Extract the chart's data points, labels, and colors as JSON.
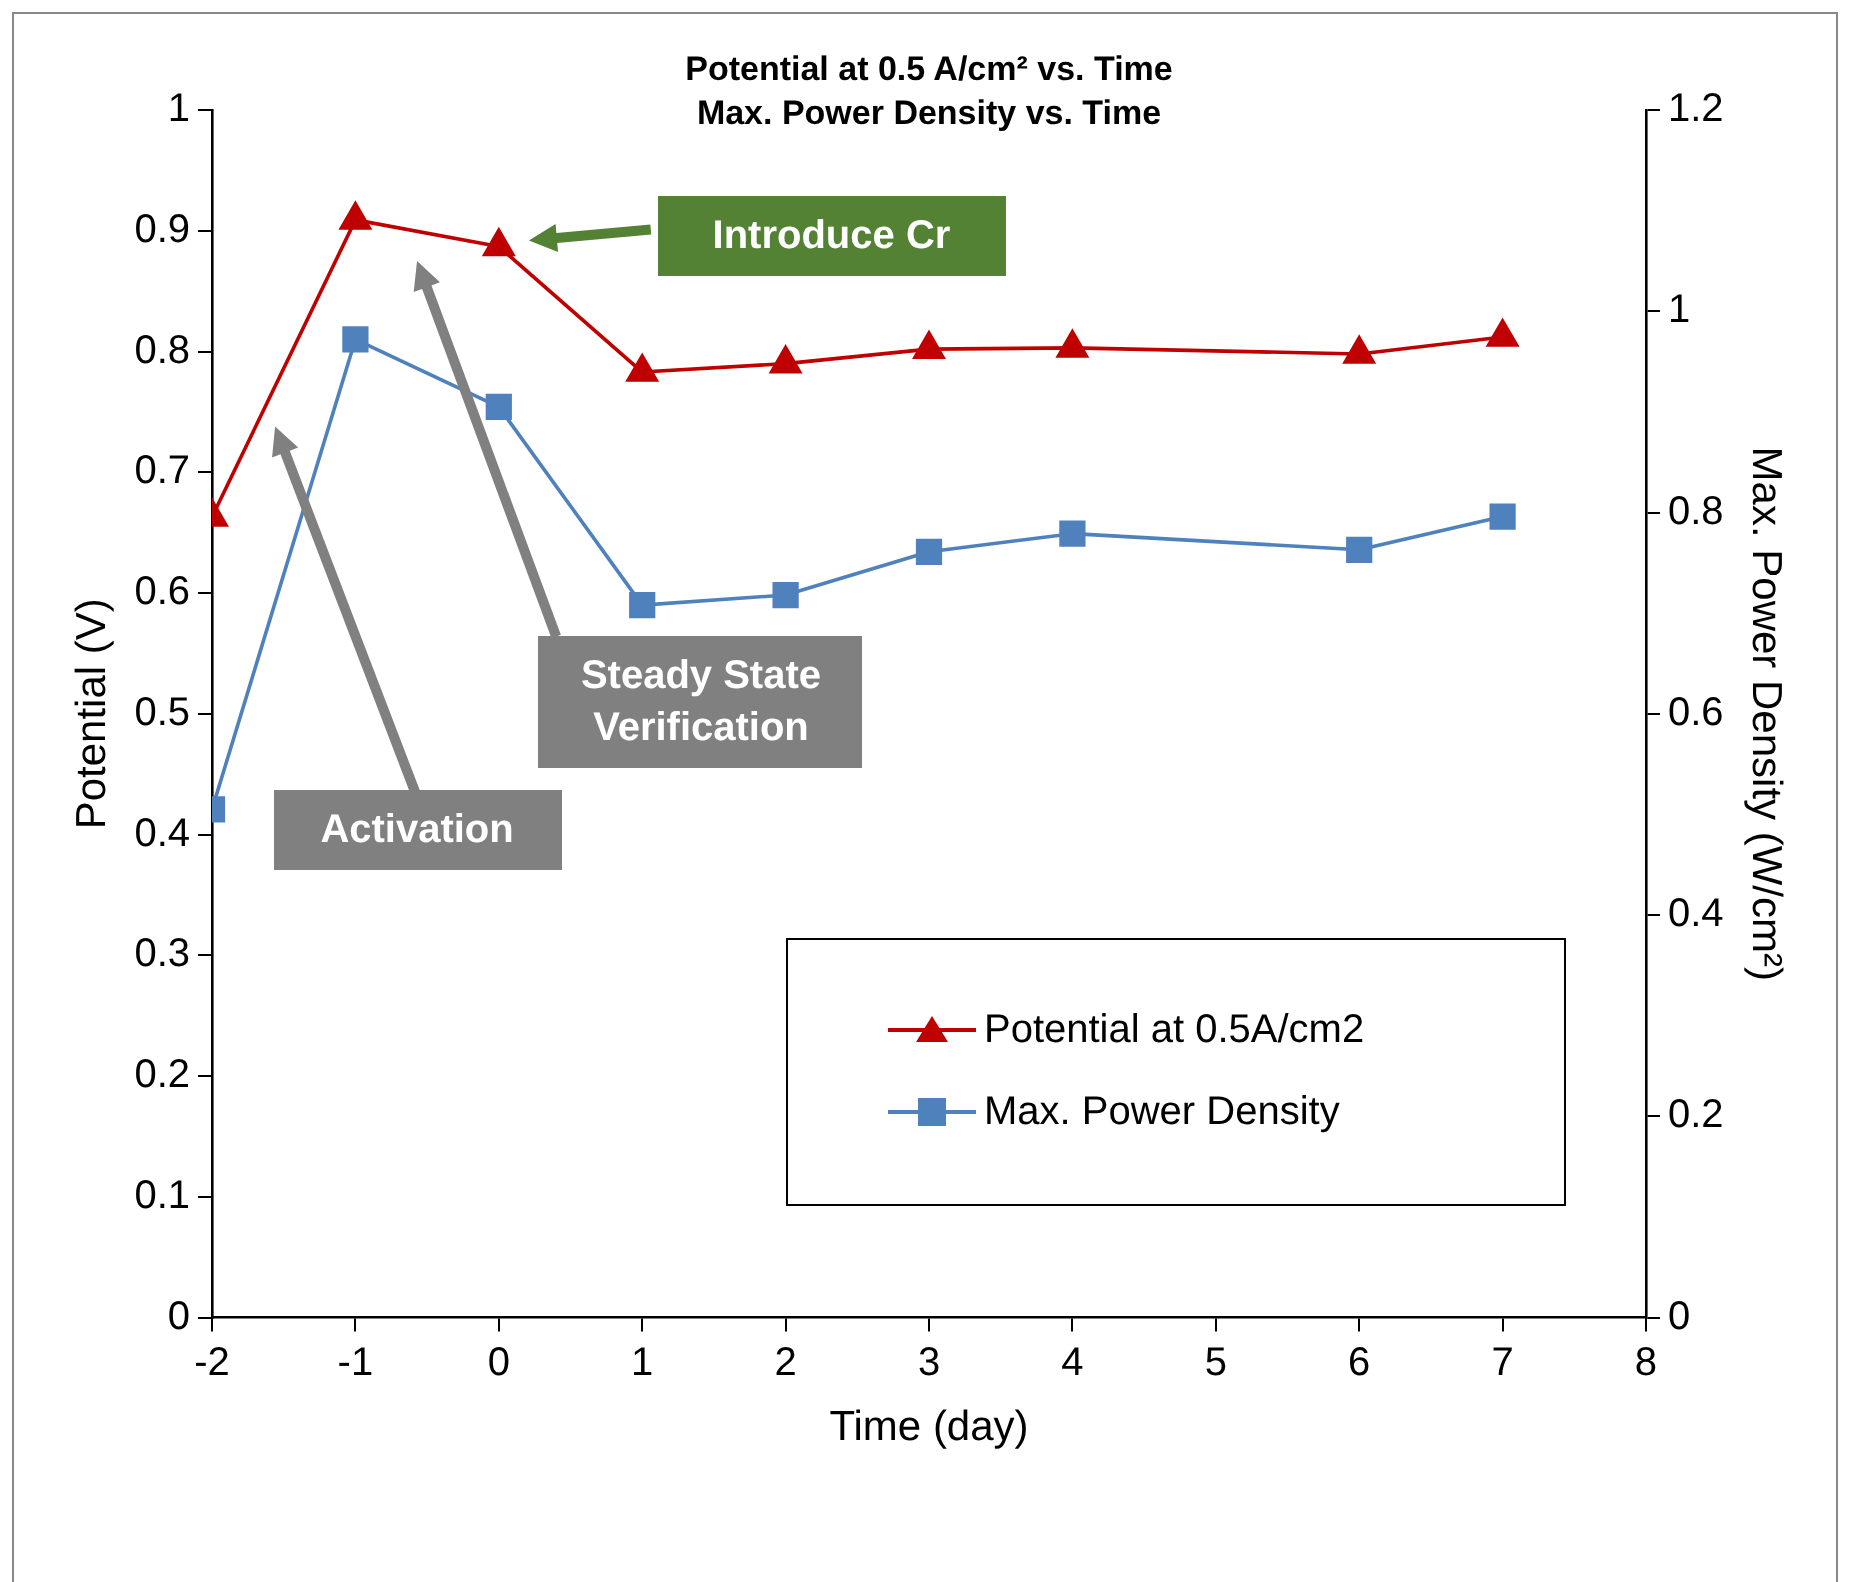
{
  "chart_data": {
    "type": "line",
    "title": "Potential at 0.5 A/cm² vs. Time\nMax. Power Density vs. Time",
    "xlabel": "Time (day)",
    "ylabel": "Potential (V)",
    "y2label": "Max. Power Density (W/cm²)",
    "x": [
      -2,
      -1,
      0,
      1,
      2,
      3,
      4,
      6,
      7
    ],
    "series": [
      {
        "name": "Potential at 0.5A/cm2",
        "color": "#c00000",
        "marker": "triangle",
        "values": [
          0.663,
          0.909,
          0.887,
          0.783,
          0.79,
          0.802,
          0.803,
          0.798,
          0.812
        ]
      },
      {
        "name": "Max. Power Density",
        "color": "#4f81bd",
        "marker": "square",
        "axis": "y2",
        "values": [
          0.505,
          0.972,
          0.905,
          0.708,
          0.718,
          0.761,
          0.779,
          0.763,
          0.796
        ]
      }
    ],
    "xlim": [
      -2,
      8
    ],
    "xticks": [
      -2,
      -1,
      0,
      1,
      2,
      3,
      4,
      5,
      6,
      7,
      8
    ],
    "ylim": [
      0,
      1
    ],
    "yticks": [
      0,
      0.1,
      0.2,
      0.3,
      0.4,
      0.5,
      0.6,
      0.7,
      0.8,
      0.9,
      1
    ],
    "y2lim": [
      0,
      1.2
    ],
    "y2ticks": [
      0,
      0.2,
      0.4,
      0.6,
      0.8,
      1,
      1.2
    ],
    "annotations": [
      "Introduce Cr",
      "Steady State Verification",
      "Activation"
    ],
    "grid": false,
    "legend": "bottom right",
    "line_style": "solid"
  }
}
